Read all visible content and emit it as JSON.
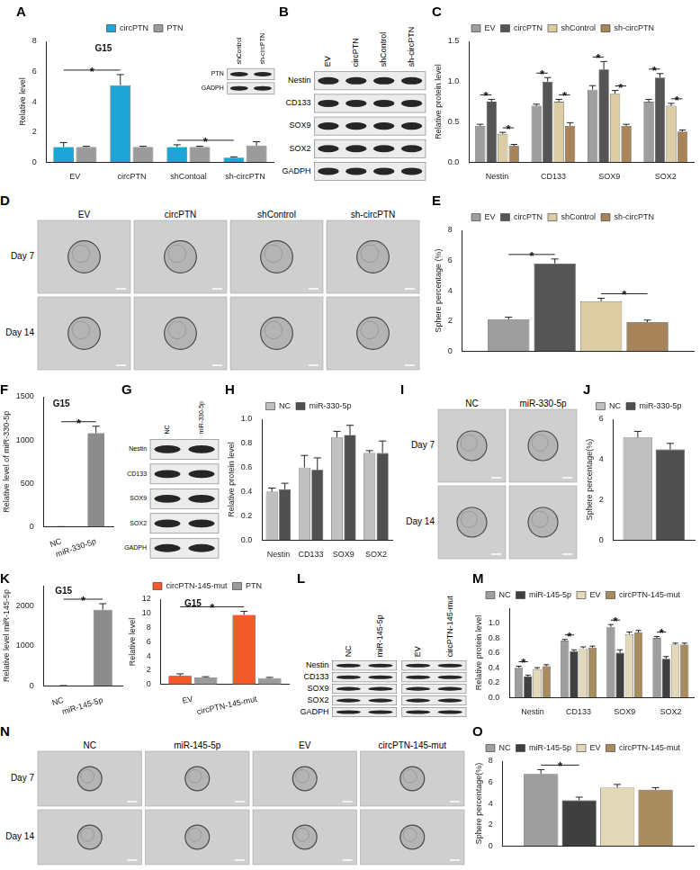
{
  "chart_data": [
    {
      "panel": "A",
      "type": "bar",
      "y_label": "Relative level",
      "categories": [
        "EV",
        "circPTN",
        "shContoal",
        "sh-circPTN"
      ],
      "series": [
        {
          "name": "circPTN",
          "color": "#1ea5d8",
          "values": [
            1.0,
            5.1,
            1.0,
            0.3
          ],
          "errors": [
            0.3,
            0.7,
            0.15,
            0.05
          ]
        },
        {
          "name": "PTN",
          "color": "#9b9b9b",
          "values": [
            1.0,
            1.0,
            1.0,
            1.1
          ],
          "errors": [
            0.05,
            0.05,
            0.05,
            0.25
          ]
        }
      ],
      "ylim": [
        0,
        8
      ],
      "yticks": [
        0,
        2,
        4,
        6,
        8
      ],
      "grid": false,
      "legend": "top",
      "annotations": [
        {
          "text": "*",
          "from": [
            "EV",
            "circPTN"
          ],
          "to": [
            "circPTN",
            "circPTN"
          ]
        },
        {
          "text": "*",
          "from": [
            "shContoal",
            "circPTN"
          ],
          "to": [
            "sh-circPTN",
            "circPTN"
          ]
        },
        {
          "text": "G15"
        }
      ]
    },
    {
      "panel": "C",
      "type": "bar",
      "y_label": "Relative protein level",
      "categories": [
        "Nestin",
        "CD133",
        "SOX9",
        "SOX2"
      ],
      "series": [
        {
          "name": "EV",
          "color": "#9e9e9e",
          "values": [
            0.45,
            0.7,
            0.9,
            0.75
          ],
          "errors": [
            0.02,
            0.02,
            0.05,
            0.03
          ]
        },
        {
          "name": "circPTN",
          "color": "#555555",
          "values": [
            0.75,
            1.0,
            1.15,
            1.05
          ],
          "errors": [
            0.03,
            0.05,
            0.1,
            0.05
          ]
        },
        {
          "name": "shControl",
          "color": "#dccca4",
          "values": [
            0.35,
            0.75,
            0.85,
            0.7
          ],
          "errors": [
            0.02,
            0.03,
            0.04,
            0.03
          ]
        },
        {
          "name": "sh-circPTN",
          "color": "#a8845a",
          "values": [
            0.2,
            0.45,
            0.45,
            0.38
          ],
          "errors": [
            0.02,
            0.04,
            0.02,
            0.02
          ]
        }
      ],
      "ylim": [
        0,
        1.5
      ],
      "yticks": [
        {
          "value": 0,
          "label": "0.0"
        },
        0.5,
        {
          "value": 1,
          "label": "1.0"
        },
        1.5
      ],
      "grid": false,
      "legend": "top",
      "annotations": [
        {
          "text": "*",
          "from": [
            "Nestin",
            "EV"
          ],
          "to": [
            "Nestin",
            "circPTN"
          ]
        },
        {
          "text": "*",
          "from": [
            "Nestin",
            "shControl"
          ],
          "to": [
            "Nestin",
            "sh-circPTN"
          ]
        },
        {
          "text": "*",
          "from": [
            "CD133",
            "EV"
          ],
          "to": [
            "CD133",
            "circPTN"
          ]
        },
        {
          "text": "*",
          "from": [
            "CD133",
            "shControl"
          ],
          "to": [
            "CD133",
            "sh-circPTN"
          ]
        },
        {
          "text": "*",
          "from": [
            "SOX9",
            "EV"
          ],
          "to": [
            "SOX9",
            "circPTN"
          ]
        },
        {
          "text": "*",
          "from": [
            "SOX9",
            "shControl"
          ],
          "to": [
            "SOX9",
            "sh-circPTN"
          ]
        },
        {
          "text": "*",
          "from": [
            "SOX2",
            "EV"
          ],
          "to": [
            "SOX2",
            "circPTN"
          ]
        },
        {
          "text": "*",
          "from": [
            "SOX2",
            "shControl"
          ],
          "to": [
            "SOX2",
            "sh-circPTN"
          ]
        }
      ]
    },
    {
      "panel": "E",
      "type": "bar",
      "y_label": "Sphere percentage (%)",
      "categories": [
        null
      ],
      "series": [
        {
          "name": "EV",
          "color": "#9e9e9e",
          "values": [
            2.1
          ],
          "errors": [
            0.15
          ]
        },
        {
          "name": "circPTN",
          "color": "#555555",
          "values": [
            5.8
          ],
          "errors": [
            0.3
          ]
        },
        {
          "name": "shControl",
          "color": "#dccca4",
          "values": [
            3.3
          ],
          "errors": [
            0.2
          ]
        },
        {
          "name": "sh-circPTN",
          "color": "#a8845a",
          "values": [
            1.9
          ],
          "errors": [
            0.15
          ]
        }
      ],
      "ylim": [
        0,
        8
      ],
      "yticks": [
        0,
        2,
        4,
        6,
        8
      ],
      "grid": false,
      "legend": "top",
      "annotations": [
        {
          "text": "*",
          "from": [
            null,
            "EV"
          ],
          "to": [
            null,
            "circPTN"
          ]
        },
        {
          "text": "*",
          "from": [
            null,
            "shControl"
          ],
          "to": [
            null,
            "sh-circPTN"
          ]
        }
      ]
    },
    {
      "panel": "F",
      "type": "bar",
      "y_label": "Relative level of miR-330-5p",
      "categories": [
        "NC",
        "miR-330-5p"
      ],
      "series": [
        {
          "colors": [
            "#bdbdbd",
            "#8c8c8c"
          ],
          "values": [
            1,
            1080
          ],
          "errors": [
            0.3,
            80
          ]
        }
      ],
      "ylim": [
        0,
        1500
      ],
      "yticks": [
        0,
        500,
        1000,
        1500
      ],
      "grid": false,
      "annotations": [
        {
          "text": "*",
          "from": [
            "NC"
          ],
          "to": [
            "miR-330-5p"
          ]
        },
        {
          "text": "G15"
        }
      ]
    },
    {
      "panel": "H",
      "type": "bar",
      "y_label": "Relative protein level",
      "categories": [
        "Nestin",
        "CD133",
        "SOX9",
        "SOX2"
      ],
      "series": [
        {
          "name": "NC",
          "color": "#c0c0c0",
          "values": [
            0.4,
            0.6,
            0.85,
            0.72
          ],
          "errors": [
            0.03,
            0.1,
            0.05,
            0.02
          ]
        },
        {
          "name": "miR-330-5p",
          "color": "#505050",
          "values": [
            0.42,
            0.58,
            0.87,
            0.72
          ],
          "errors": [
            0.05,
            0.1,
            0.08,
            0.1
          ]
        }
      ],
      "ylim": [
        0,
        1
      ],
      "yticks": [
        {
          "value": 0,
          "label": "0.0"
        },
        0.2,
        0.4,
        0.6,
        0.8,
        {
          "value": 1,
          "label": "1.0"
        }
      ],
      "grid": false,
      "legend": "top"
    },
    {
      "panel": "J",
      "type": "bar",
      "y_label": "Sphere percentage(%)",
      "categories": [
        null
      ],
      "series": [
        {
          "name": "NC",
          "color": "#c0c0c0",
          "values": [
            5.1
          ],
          "errors": [
            0.3
          ]
        },
        {
          "name": "miR-330-5p",
          "color": "#505050",
          "values": [
            4.5
          ],
          "errors": [
            0.3
          ]
        }
      ],
      "ylim": [
        0,
        6
      ],
      "yticks": [
        0,
        2,
        4,
        6
      ],
      "grid": false,
      "legend": "top"
    },
    {
      "panel": "K",
      "type": "bar",
      "y_label": "Relative level miR-145-5p",
      "categories": [
        "NC",
        "miR-145-5p"
      ],
      "series": [
        {
          "colors": [
            "#bdbdbd",
            "#8c8c8c"
          ],
          "values": [
            1,
            1900
          ],
          "errors": [
            0.3,
            150
          ]
        }
      ],
      "ylim": [
        0,
        2500
      ],
      "yticks": [
        0,
        1000,
        2000
      ],
      "grid": false,
      "annotations": [
        {
          "text": "*",
          "from": [
            "NC"
          ],
          "to": [
            "miR-145-5p"
          ]
        },
        {
          "text": "G15"
        }
      ]
    },
    {
      "type": "bar",
      "y_label": "Relative level",
      "categories": [
        "EV",
        "circPTN-145-mut"
      ],
      "series": [
        {
          "name": "circPTN-145-mut",
          "color": "#f25a2a",
          "values": [
            1.2,
            9.8
          ],
          "errors": [
            0.3,
            0.5
          ]
        },
        {
          "name": "PTN",
          "color": "#9b9b9b",
          "values": [
            1.0,
            0.9
          ],
          "errors": [
            0.1,
            0.1
          ]
        }
      ],
      "ylim": [
        0,
        12
      ],
      "yticks": [
        0,
        2,
        4,
        6,
        8,
        10,
        12
      ],
      "grid": false,
      "legend": "top",
      "annotations": [
        {
          "text": "*",
          "from": [
            "EV",
            "circPTN-145-mut"
          ],
          "to": [
            "circPTN-145-mut",
            "circPTN-145-mut"
          ]
        },
        {
          "text": "G15"
        }
      ]
    },
    {
      "panel": "M",
      "type": "bar",
      "y_label": "Relative protein level",
      "categories": [
        "Nestin",
        "CD133",
        "SOX9",
        "SOX2"
      ],
      "series": [
        {
          "name": "NC",
          "color": "#9e9e9e",
          "values": [
            0.4,
            0.76,
            0.95,
            0.8
          ],
          "errors": [
            0.02,
            0.02,
            0.03,
            0.02
          ]
        },
        {
          "name": "miR-145-5p",
          "color": "#3f3f3f",
          "values": [
            0.28,
            0.62,
            0.6,
            0.52
          ],
          "errors": [
            0.02,
            0.02,
            0.04,
            0.03
          ]
        },
        {
          "name": "EV",
          "color": "#e3d8b8",
          "values": [
            0.38,
            0.66,
            0.85,
            0.71
          ],
          "errors": [
            0.02,
            0.02,
            0.03,
            0.02
          ]
        },
        {
          "name": "circPTN-145-mut",
          "color": "#a88b5e",
          "values": [
            0.42,
            0.67,
            0.87,
            0.71
          ],
          "errors": [
            0.02,
            0.02,
            0.03,
            0.02
          ]
        }
      ],
      "ylim": [
        0,
        1.2
      ],
      "yticks": [
        {
          "value": 0,
          "label": "0.0"
        },
        0.2,
        0.4,
        0.6,
        0.8,
        {
          "value": 1,
          "label": "1.0"
        }
      ],
      "grid": false,
      "legend": "top",
      "annotations": [
        {
          "text": "*",
          "from": [
            "Nestin",
            "NC"
          ],
          "to": [
            "Nestin",
            "miR-145-5p"
          ]
        },
        {
          "text": "*",
          "from": [
            "CD133",
            "NC"
          ],
          "to": [
            "CD133",
            "miR-145-5p"
          ]
        },
        {
          "text": "*",
          "from": [
            "SOX9",
            "NC"
          ],
          "to": [
            "SOX9",
            "miR-145-5p"
          ]
        },
        {
          "text": "*",
          "from": [
            "SOX2",
            "NC"
          ],
          "to": [
            "SOX2",
            "miR-145-5p"
          ]
        }
      ]
    },
    {
      "panel": "O",
      "type": "bar",
      "y_label": "Sphere percentage(%)",
      "categories": [
        null
      ],
      "series": [
        {
          "name": "NC",
          "color": "#9e9e9e",
          "values": [
            6.8
          ],
          "errors": [
            0.4
          ]
        },
        {
          "name": "miR-145-5p",
          "color": "#3f3f3f",
          "values": [
            4.3
          ],
          "errors": [
            0.3
          ]
        },
        {
          "name": "EV",
          "color": "#e3d8b8",
          "values": [
            5.5
          ],
          "errors": [
            0.3
          ]
        },
        {
          "name": "circPTN-145-mut",
          "color": "#a88b5e",
          "values": [
            5.3
          ],
          "errors": [
            0.2
          ]
        }
      ],
      "ylim": [
        0,
        8
      ],
      "yticks": [
        0,
        2,
        4,
        6,
        8
      ],
      "grid": false,
      "legend": "top",
      "annotations": [
        {
          "text": "*",
          "from": [
            null,
            "NC"
          ],
          "to": [
            null,
            "miR-145-5p"
          ]
        }
      ]
    }
  ],
  "blots": [
    {
      "columns": [
        [
          "shControl",
          "sh-circPTN"
        ]
      ],
      "rows": [
        "PTN",
        "GADPH"
      ]
    },
    {
      "panel": "B",
      "columns": [
        [
          "EV",
          "circPTN",
          "shControl",
          "sh-circPTN"
        ]
      ],
      "rows": [
        "Nestin",
        "CD133",
        "SOX9",
        "SOX2",
        "GADPH"
      ]
    },
    {
      "panel": "G",
      "columns": [
        [
          "NC",
          "miR-330-5p"
        ]
      ],
      "rows": [
        "Nestin",
        "CD133",
        "SOX9",
        "SOX2",
        "GADPH"
      ]
    },
    {
      "panel": "L",
      "columns": [
        [
          "NC",
          "miR-145-5p"
        ],
        [
          "EV",
          "circPTN-145-mut"
        ]
      ],
      "rows": [
        "Nestin",
        "CD133",
        "SOX9",
        "SOX2",
        "GADPH"
      ]
    }
  ],
  "images": [
    {
      "panel": "D",
      "columns": [
        "EV",
        "circPTN",
        "shControl",
        "sh-circPTN"
      ],
      "rows": [
        "Day 7",
        "Day 14"
      ]
    },
    {
      "panel": "I",
      "columns": [
        "NC",
        "miR-330-5p"
      ],
      "rows": [
        "Day 7",
        "Day 14"
      ]
    },
    {
      "panel": "N",
      "columns": [
        "NC",
        "miR-145-5p",
        "EV",
        "circPTN-145-mut"
      ],
      "rows": [
        "Day 7",
        "Day 14"
      ]
    }
  ]
}
